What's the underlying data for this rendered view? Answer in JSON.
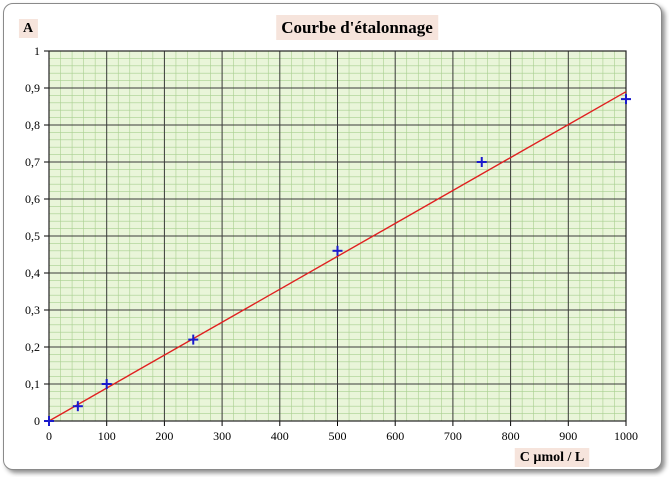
{
  "chart_data": {
    "type": "scatter",
    "title": "Courbe d'étalonnage",
    "ylabel": "A",
    "xlabel": "C µmol / L",
    "xlim": [
      0,
      1000
    ],
    "ylim": [
      0,
      1
    ],
    "x_ticks": [
      0,
      100,
      200,
      300,
      400,
      500,
      600,
      700,
      800,
      900,
      1000
    ],
    "y_ticks": [
      0,
      0.1,
      0.2,
      0.3,
      0.4,
      0.5,
      0.6,
      0.7,
      0.8,
      0.9,
      1
    ],
    "x_tick_labels": [
      "0",
      "100",
      "200",
      "300",
      "400",
      "500",
      "600",
      "700",
      "800",
      "900",
      "1000"
    ],
    "y_tick_labels": [
      "0",
      "0,1",
      "0,2",
      "0,3",
      "0,4",
      "0,5",
      "0,6",
      "0,7",
      "0,8",
      "0,9",
      "1"
    ],
    "grid": true,
    "points": {
      "x": [
        0,
        50,
        100,
        250,
        500,
        750,
        1000
      ],
      "y": [
        0,
        0.04,
        0.1,
        0.22,
        0.46,
        0.7,
        0.87
      ]
    },
    "fit_line": {
      "x": [
        0,
        1000
      ],
      "y": [
        0,
        0.89
      ]
    },
    "colors": {
      "plot_background": "#e9f5d9",
      "minor_grid": "#a8cf8f",
      "major_grid": "#3a3a3a",
      "fit_line": "#e02020",
      "markers": "#1a1acc",
      "title_background": "#f6e4dc"
    }
  }
}
